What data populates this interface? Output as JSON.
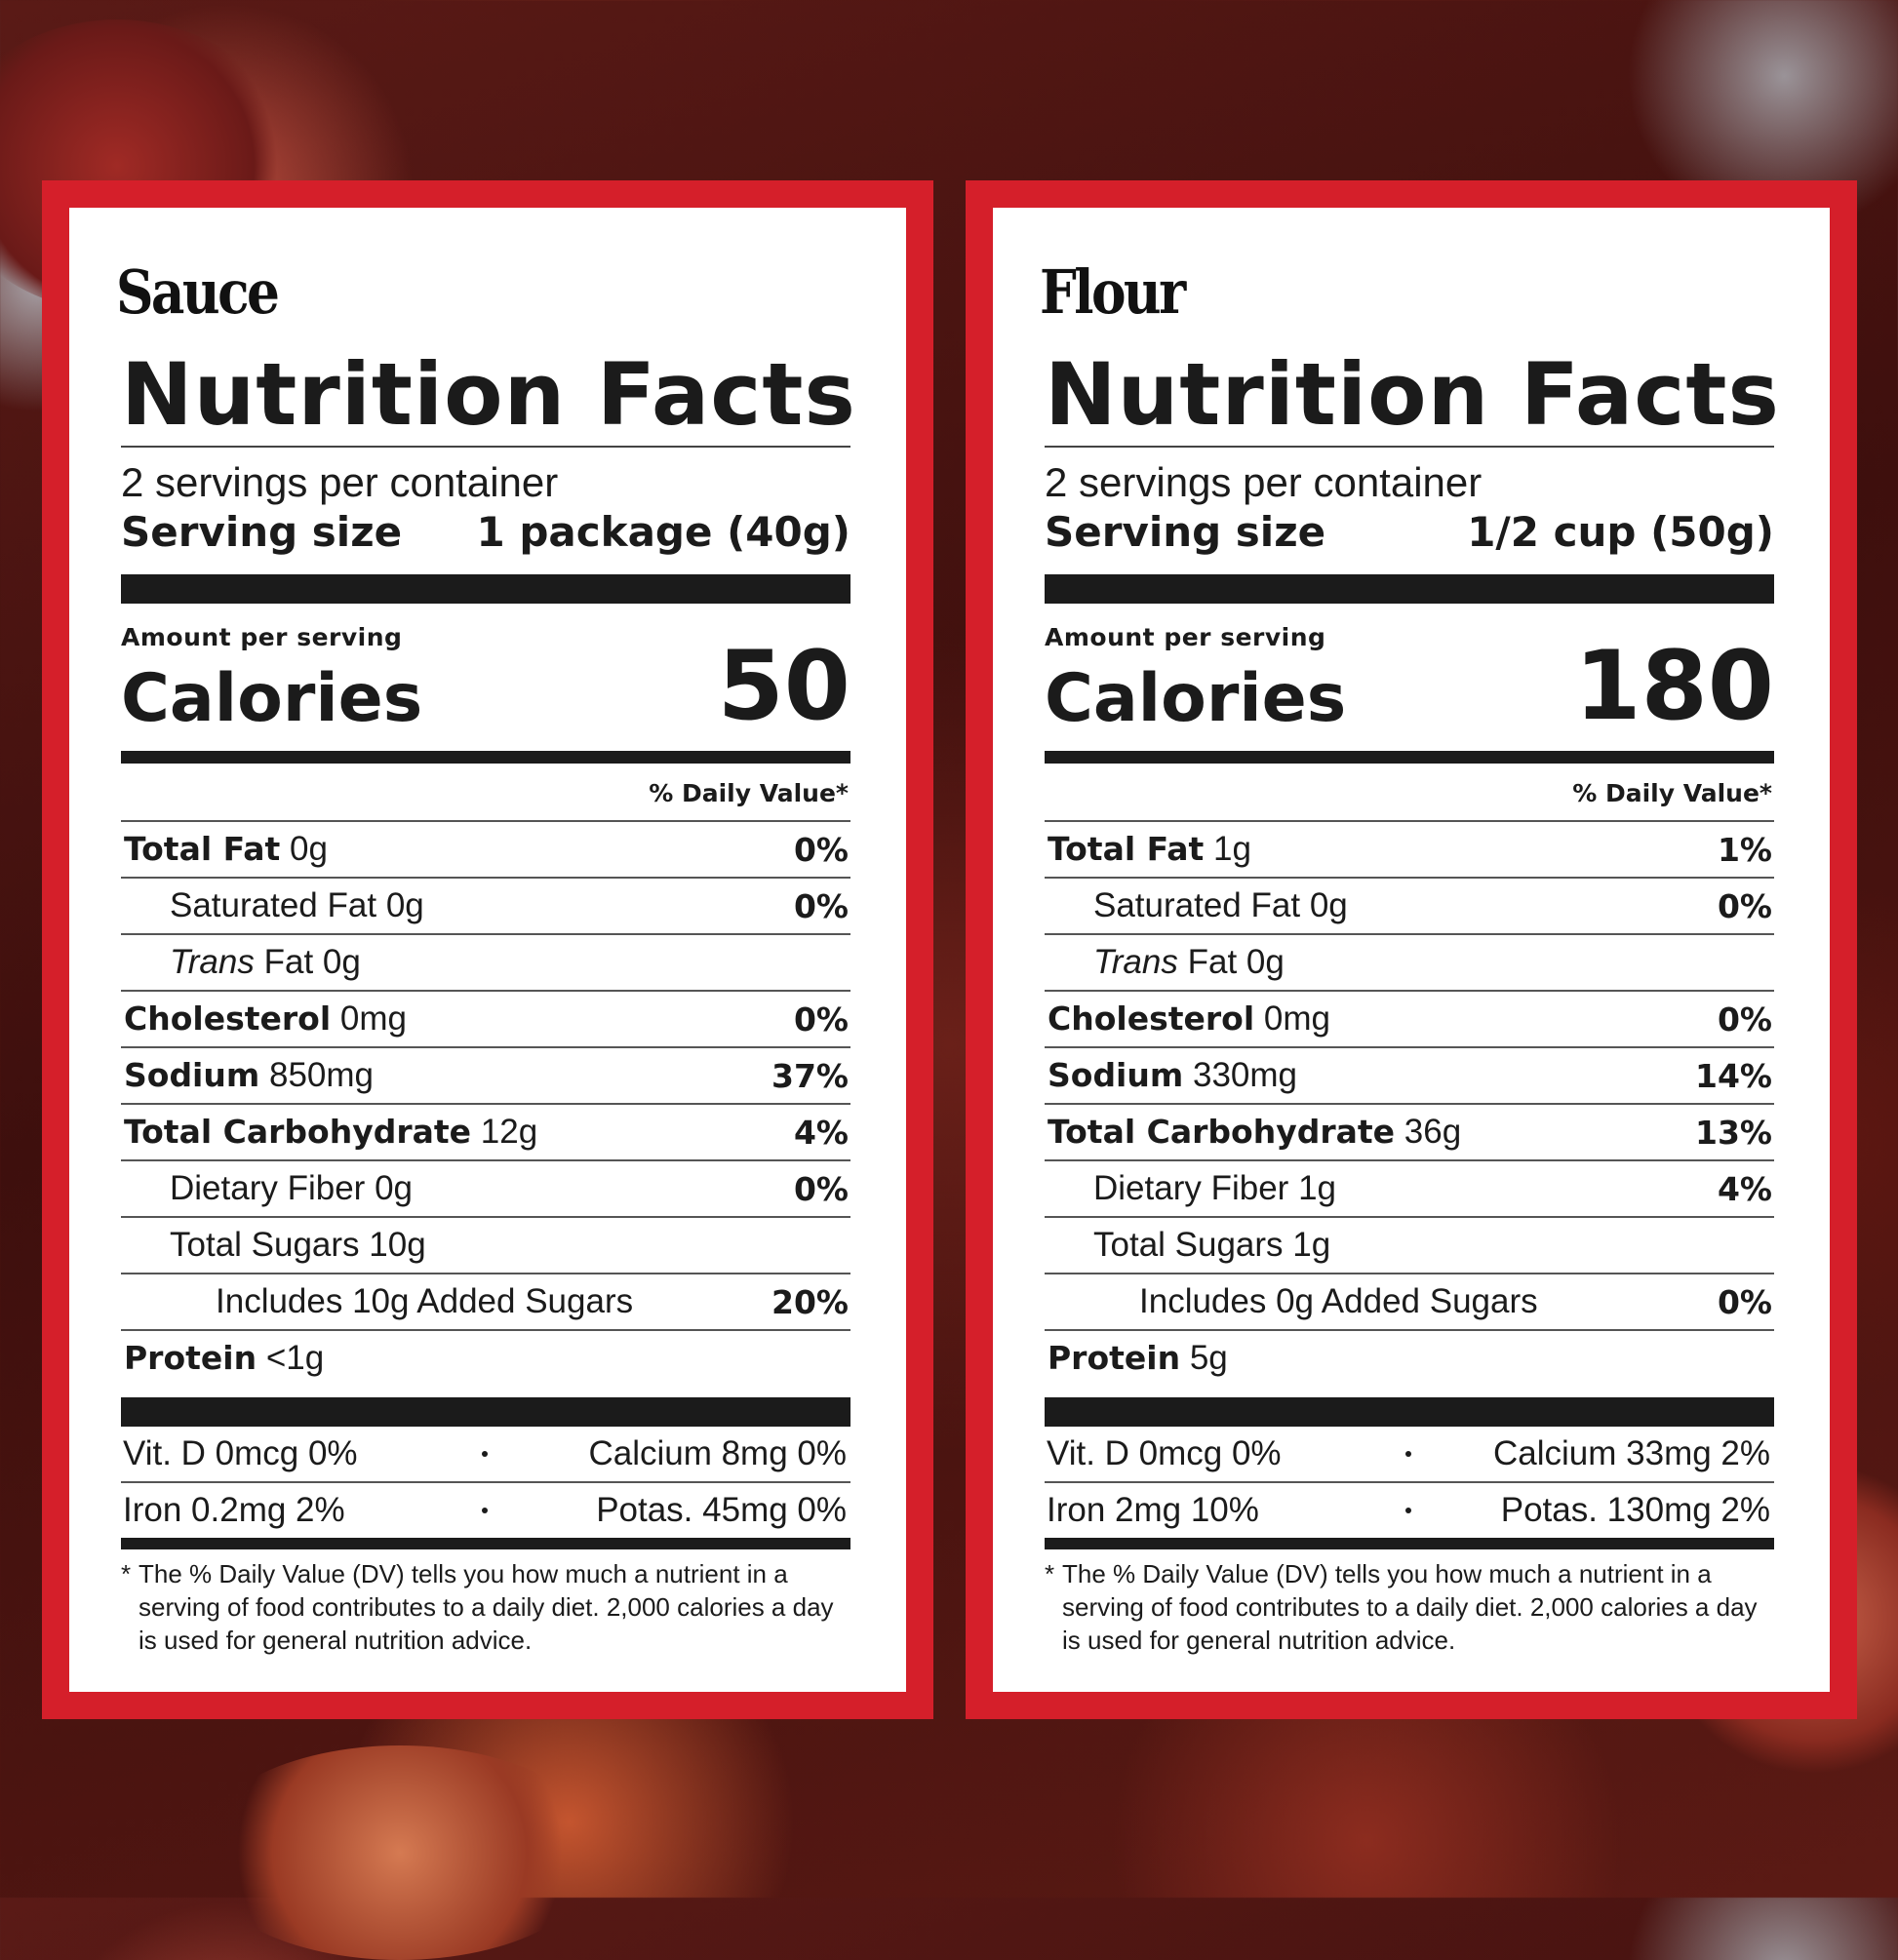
{
  "labels": [
    {
      "title": "Sauce",
      "heading": "Nutrition Facts",
      "servings_per_container": "2 servings per container",
      "serving_size_label": "Serving size",
      "serving_size_value": "1 package (40g)",
      "amount_per_serving": "Amount per serving",
      "calories_label": "Calories",
      "calories_value": "50",
      "daily_value_header": "% Daily Value*",
      "nutrients": [
        {
          "bold": "Total Fat",
          "name": "",
          "amount": "0g",
          "dv": "0%",
          "indent": 0
        },
        {
          "bold": "",
          "name": "Saturated Fat",
          "amount": "0g",
          "dv": "0%",
          "indent": 1
        },
        {
          "bold": "",
          "name": "Trans",
          "name_suffix": "Fat",
          "amount": "0g",
          "dv": "",
          "indent": 1,
          "italic": true
        },
        {
          "bold": "Cholesterol",
          "name": "",
          "amount": "0mg",
          "dv": "0%",
          "indent": 0
        },
        {
          "bold": "Sodium",
          "name": "",
          "amount": "850mg",
          "dv": "37%",
          "indent": 0
        },
        {
          "bold": "Total Carbohydrate",
          "name": "",
          "amount": "12g",
          "dv": "4%",
          "indent": 0
        },
        {
          "bold": "",
          "name": "Dietary Fiber",
          "amount": "0g",
          "dv": "0%",
          "indent": 1
        },
        {
          "bold": "",
          "name": "Total Sugars",
          "amount": "10g",
          "dv": "",
          "indent": 1
        },
        {
          "bold": "",
          "name": "Includes 10g Added Sugars",
          "amount": "",
          "dv": "20%",
          "indent": 2
        },
        {
          "bold": "Protein",
          "name": "",
          "amount": "<1g",
          "dv": "",
          "indent": 0
        }
      ],
      "vitamins": [
        {
          "left": "Vit. D 0mcg 0%",
          "right": "Calcium 8mg 0%"
        },
        {
          "left": "Iron 0.2mg 2%",
          "right": "Potas. 45mg 0%"
        }
      ],
      "footnote_star": "*",
      "footnote": "The % Daily Value (DV) tells you how much a nutrient in a serving of food contributes to a daily diet. 2,000 calories a day is used for general nutrition advice."
    },
    {
      "title": "Flour",
      "heading": "Nutrition Facts",
      "servings_per_container": "2 servings per container",
      "serving_size_label": "Serving size",
      "serving_size_value": "1/2 cup (50g)",
      "amount_per_serving": "Amount per serving",
      "calories_label": "Calories",
      "calories_value": "180",
      "daily_value_header": "% Daily Value*",
      "nutrients": [
        {
          "bold": "Total Fat",
          "name": "",
          "amount": "1g",
          "dv": "1%",
          "indent": 0
        },
        {
          "bold": "",
          "name": "Saturated Fat",
          "amount": "0g",
          "dv": "0%",
          "indent": 1
        },
        {
          "bold": "",
          "name": "Trans",
          "name_suffix": "Fat",
          "amount": "0g",
          "dv": "",
          "indent": 1,
          "italic": true
        },
        {
          "bold": "Cholesterol",
          "name": "",
          "amount": "0mg",
          "dv": "0%",
          "indent": 0
        },
        {
          "bold": "Sodium",
          "name": "",
          "amount": "330mg",
          "dv": "14%",
          "indent": 0
        },
        {
          "bold": "Total Carbohydrate",
          "name": "",
          "amount": "36g",
          "dv": "13%",
          "indent": 0
        },
        {
          "bold": "",
          "name": "Dietary Fiber",
          "amount": "1g",
          "dv": "4%",
          "indent": 1
        },
        {
          "bold": "",
          "name": "Total Sugars",
          "amount": "1g",
          "dv": "",
          "indent": 1
        },
        {
          "bold": "",
          "name": "Includes 0g Added Sugars",
          "amount": "",
          "dv": "0%",
          "indent": 2
        },
        {
          "bold": "Protein",
          "name": "",
          "amount": "5g",
          "dv": "",
          "indent": 0
        }
      ],
      "vitamins": [
        {
          "left": "Vit. D 0mcg 0%",
          "right": "Calcium 33mg 2%"
        },
        {
          "left": "Iron 2mg 10%",
          "right": "Potas. 130mg 2%"
        }
      ],
      "footnote_star": "*",
      "footnote": "The % Daily Value (DV) tells you how much a nutrient in a serving of food contributes to a daily diet. 2,000 calories a day is used for general nutrition advice."
    }
  ],
  "colors": {
    "frame": "#d51f2a",
    "ink": "#1b1b1b",
    "card": "#ffffff"
  }
}
